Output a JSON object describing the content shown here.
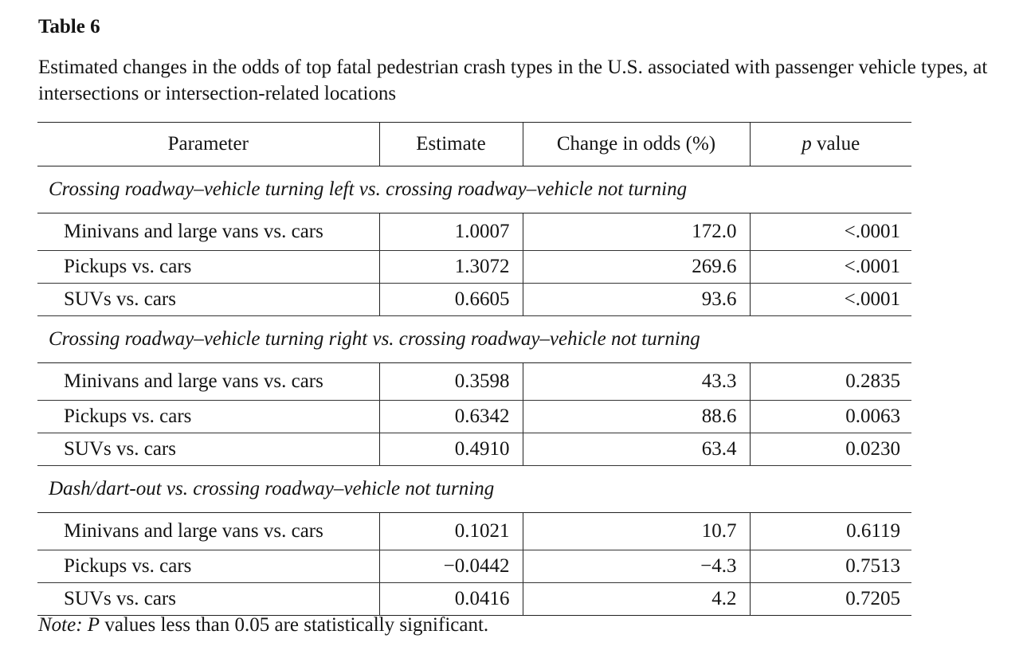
{
  "table_label": "Table 6",
  "caption": "Estimated changes in the odds of top fatal pedestrian crash types in the U.S. associated with passenger vehicle types, at intersections or intersection-related locations",
  "columns": {
    "parameter": "Parameter",
    "estimate": "Estimate",
    "change": "Change in odds (%)",
    "p_italic": "p",
    "p_rest": " value"
  },
  "groups": [
    {
      "title": "Crossing roadway–vehicle turning left vs. crossing roadway–vehicle not turning",
      "rows": [
        {
          "parameter": "Minivans and large vans vs. cars",
          "estimate": "1.0007",
          "change": "172.0",
          "p": "<.0001"
        },
        {
          "parameter": "Pickups vs. cars",
          "estimate": "1.3072",
          "change": "269.6",
          "p": "<.0001"
        },
        {
          "parameter": "SUVs vs. cars",
          "estimate": "0.6605",
          "change": "93.6",
          "p": "<.0001"
        }
      ]
    },
    {
      "title": "Crossing roadway–vehicle turning right vs. crossing roadway–vehicle not turning",
      "rows": [
        {
          "parameter": "Minivans and large vans vs. cars",
          "estimate": "0.3598",
          "change": "43.3",
          "p": "0.2835"
        },
        {
          "parameter": "Pickups vs. cars",
          "estimate": "0.6342",
          "change": "88.6",
          "p": "0.0063"
        },
        {
          "parameter": "SUVs vs. cars",
          "estimate": "0.4910",
          "change": "63.4",
          "p": "0.0230"
        }
      ]
    },
    {
      "title": "Dash/dart-out vs. crossing roadway–vehicle not turning",
      "rows": [
        {
          "parameter": "Minivans and large vans vs. cars",
          "estimate": "0.1021",
          "change": "10.7",
          "p": "0.6119"
        },
        {
          "parameter": "Pickups vs. cars",
          "estimate": "−0.0442",
          "change": "−4.3",
          "p": "0.7513"
        },
        {
          "parameter": "SUVs vs. cars",
          "estimate": "0.0416",
          "change": "4.2",
          "p": "0.7205"
        }
      ]
    }
  ],
  "note": {
    "label": "Note:",
    "p_italic": "P",
    "text": " values less than 0.05 are statistically significant."
  }
}
